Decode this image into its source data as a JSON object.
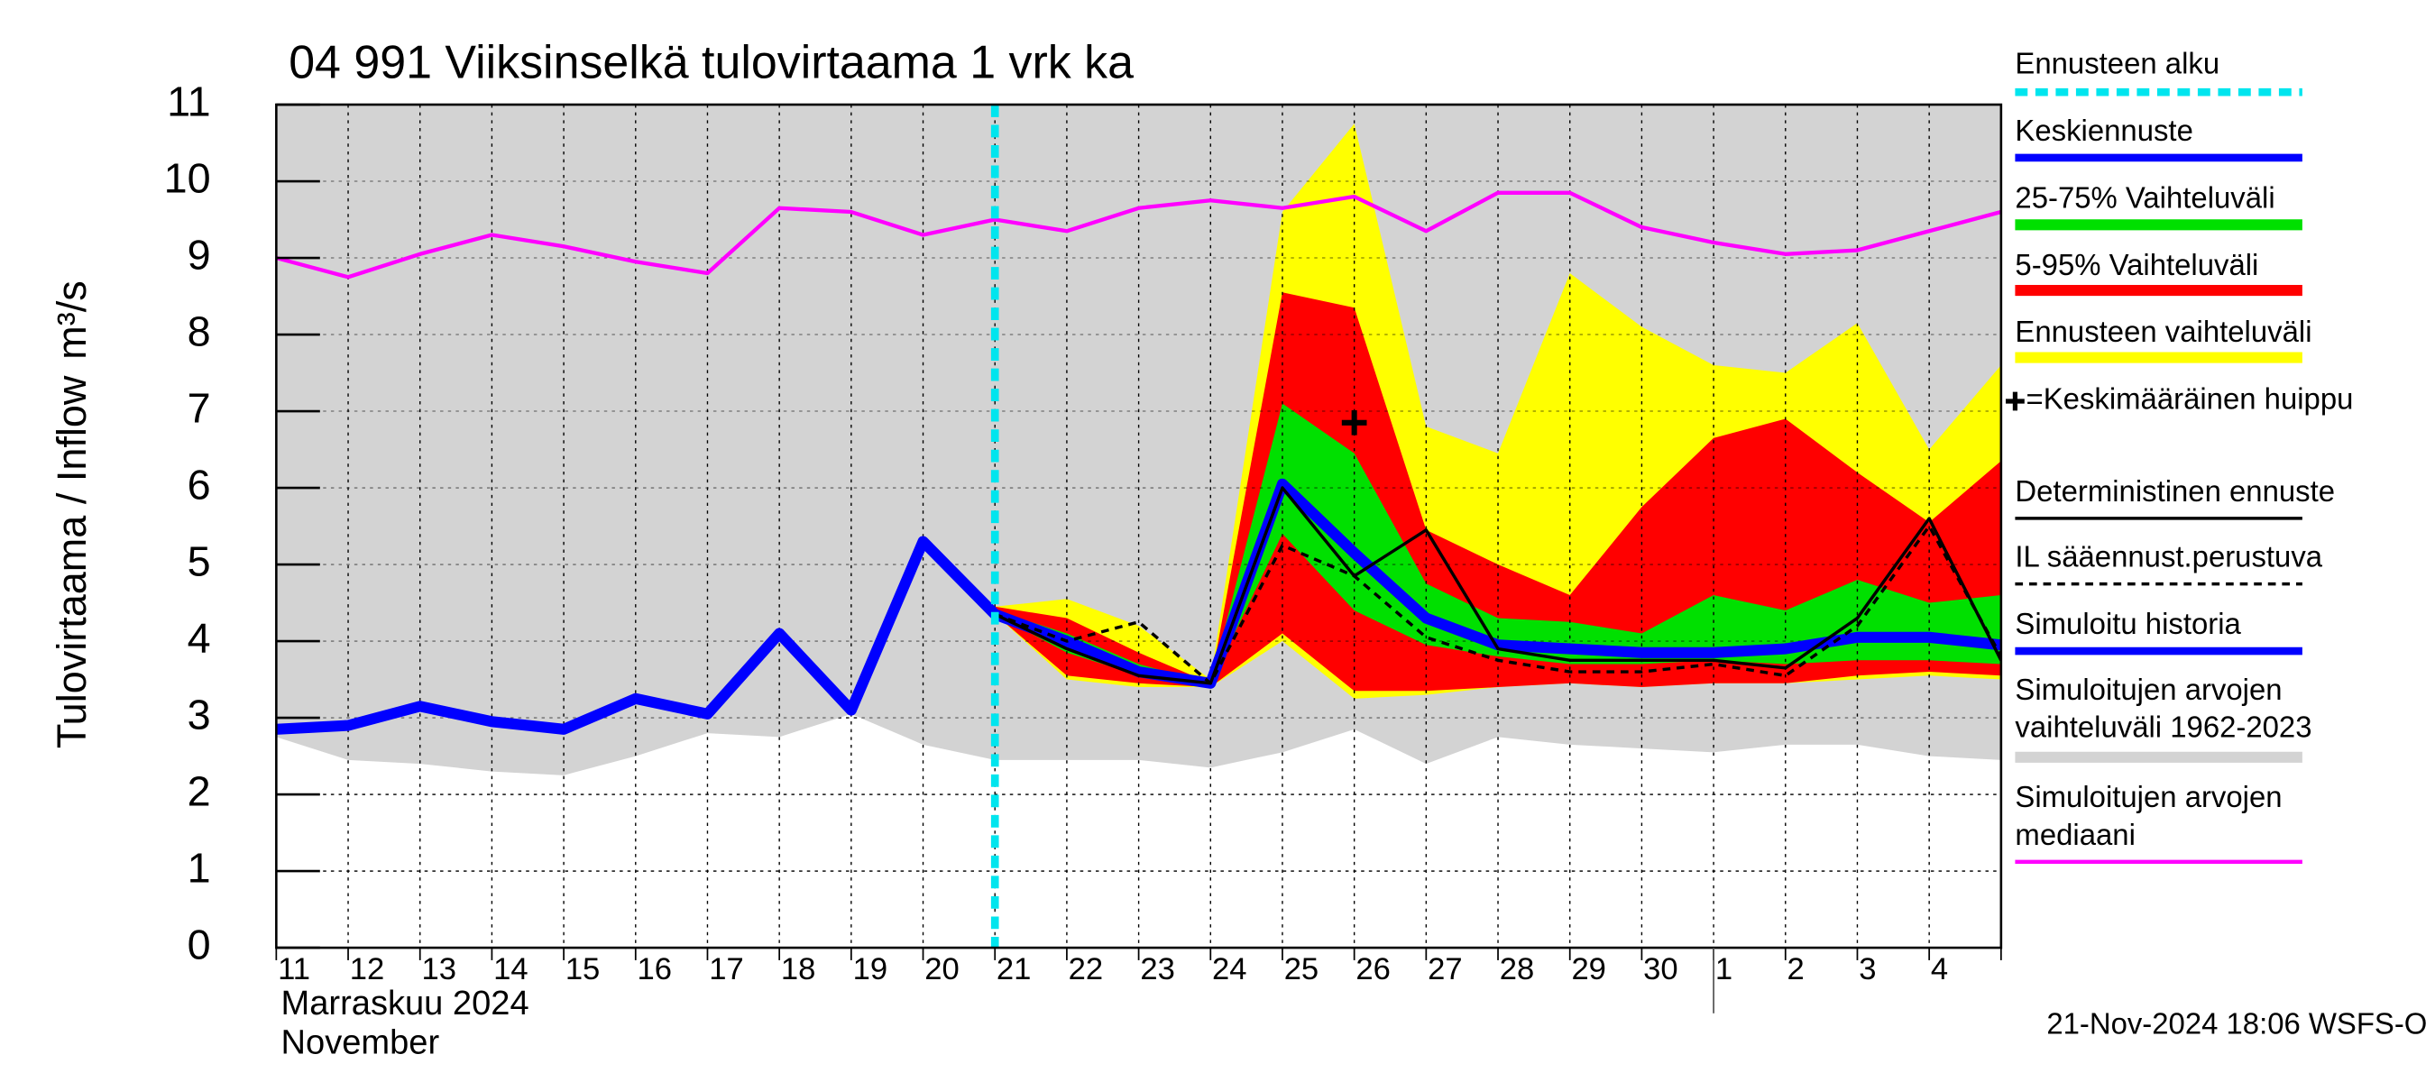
{
  "chart_data": {
    "type": "hydrograph",
    "title": "04 991 Viiksinselkä tulovirtaama 1 vrk ka",
    "ylabel": "Tulovirtaama / Inflow",
    "ylabel_unit": "m³/s",
    "x_label_fi": "Marraskuu 2024",
    "x_label_en": "November",
    "timestamp": "21-Nov-2024 18:06 WSFS-O",
    "categories": [
      "11",
      "12",
      "13",
      "14",
      "15",
      "16",
      "17",
      "18",
      "19",
      "20",
      "21",
      "22",
      "23",
      "24",
      "25",
      "26",
      "27",
      "28",
      "29",
      "30",
      "1",
      "2",
      "3",
      "4",
      null
    ],
    "xlim": [
      0,
      24
    ],
    "ylim": [
      0,
      11
    ],
    "yticks": [
      0,
      1,
      2,
      3,
      4,
      5,
      6,
      7,
      8,
      9,
      10,
      11
    ],
    "grid": true,
    "series": [
      {
        "name": "Ennusteen alku",
        "kind": "vline",
        "color": "#00e5ee",
        "x": 10
      },
      {
        "name": "Keskiennuste",
        "kind": "line",
        "color": "#0000ff",
        "values": [
          null,
          null,
          null,
          null,
          null,
          null,
          null,
          null,
          null,
          null,
          4.35,
          4.0,
          3.6,
          3.45,
          6.05,
          5.15,
          4.3,
          3.95,
          3.9,
          3.85,
          3.85,
          3.9,
          4.05,
          4.05,
          3.95
        ]
      },
      {
        "name": "25-75% Vaihteluväli",
        "kind": "band",
        "color": "#00e000",
        "high": [
          null,
          null,
          null,
          null,
          null,
          null,
          null,
          null,
          null,
          null,
          4.4,
          4.1,
          3.7,
          3.45,
          7.1,
          6.45,
          4.75,
          4.3,
          4.25,
          4.1,
          4.6,
          4.4,
          4.8,
          4.5,
          4.6
        ],
        "low": [
          null,
          null,
          null,
          null,
          null,
          null,
          null,
          null,
          null,
          null,
          4.35,
          3.85,
          3.55,
          3.45,
          5.4,
          4.4,
          3.95,
          3.8,
          3.7,
          3.7,
          3.75,
          3.7,
          3.75,
          3.75,
          3.7
        ]
      },
      {
        "name": "5-95% Vaihteluväli",
        "kind": "band",
        "color": "#ff0000",
        "high": [
          null,
          null,
          null,
          null,
          null,
          null,
          null,
          null,
          null,
          null,
          4.45,
          4.3,
          3.85,
          3.45,
          8.55,
          8.35,
          5.45,
          5.0,
          4.6,
          5.75,
          6.65,
          6.9,
          6.2,
          5.55,
          6.35
        ],
        "low": [
          null,
          null,
          null,
          null,
          null,
          null,
          null,
          null,
          null,
          null,
          4.35,
          3.55,
          3.45,
          3.4,
          4.1,
          3.35,
          3.35,
          3.4,
          3.45,
          3.4,
          3.45,
          3.45,
          3.55,
          3.6,
          3.55
        ]
      },
      {
        "name": "Ennusteen vaihteluväli",
        "kind": "band",
        "color": "#ffff00",
        "high": [
          null,
          null,
          null,
          null,
          null,
          null,
          null,
          null,
          null,
          null,
          4.45,
          4.55,
          4.2,
          3.5,
          9.6,
          10.75,
          6.8,
          6.45,
          8.8,
          8.1,
          7.6,
          7.5,
          8.15,
          6.5,
          7.6
        ],
        "low": [
          null,
          null,
          null,
          null,
          null,
          null,
          null,
          null,
          null,
          null,
          4.35,
          3.5,
          3.4,
          3.4,
          4.0,
          3.25,
          3.3,
          3.4,
          3.45,
          3.4,
          3.45,
          3.45,
          3.5,
          3.55,
          3.5
        ]
      },
      {
        "name": "=Keskimääräinen huippu",
        "kind": "marker",
        "color": "#000000",
        "x": [
          15
        ],
        "values": [
          6.85
        ]
      },
      {
        "name": "Deterministinen ennuste",
        "kind": "line",
        "color": "#000000",
        "values": [
          null,
          null,
          null,
          null,
          null,
          null,
          null,
          null,
          null,
          null,
          4.35,
          3.9,
          3.55,
          3.45,
          6.0,
          4.85,
          5.45,
          3.9,
          3.75,
          3.75,
          3.75,
          3.65,
          4.3,
          5.6,
          3.75
        ]
      },
      {
        "name": "IL sääennust.perustuva",
        "kind": "dashed",
        "color": "#000000",
        "values": [
          null,
          null,
          null,
          null,
          null,
          null,
          null,
          null,
          null,
          null,
          4.35,
          4.0,
          4.25,
          3.45,
          5.25,
          4.85,
          4.05,
          3.75,
          3.6,
          3.6,
          3.7,
          3.55,
          4.2,
          5.5,
          3.8
        ]
      },
      {
        "name": "Simuloitu historia",
        "kind": "line",
        "color": "#0000ff",
        "values": [
          2.85,
          2.9,
          3.15,
          2.95,
          2.85,
          3.25,
          3.05,
          4.1,
          3.1,
          5.3,
          4.35,
          null,
          null,
          null,
          null,
          null,
          null,
          null,
          null,
          null,
          null,
          null,
          null,
          null,
          null
        ]
      },
      {
        "name": "Simuloitujen arvojen vaihteluväli 1962-2023",
        "kind": "band",
        "color": "#d3d3d3",
        "high": [
          11,
          11,
          11,
          11,
          11,
          11,
          11,
          11,
          11,
          11,
          11,
          11,
          11,
          11,
          11,
          11,
          11,
          11,
          11,
          11,
          11,
          11,
          11,
          11,
          11
        ],
        "low": [
          2.75,
          2.45,
          2.4,
          2.3,
          2.25,
          2.5,
          2.8,
          2.75,
          3.05,
          2.65,
          2.45,
          2.45,
          2.45,
          2.35,
          2.55,
          2.85,
          2.4,
          2.75,
          2.65,
          2.6,
          2.55,
          2.65,
          2.65,
          2.5,
          2.45
        ]
      },
      {
        "name": "Simuloitujen arvojen mediaani",
        "kind": "line",
        "color": "#ff00ff",
        "values": [
          9.0,
          8.75,
          9.05,
          9.3,
          9.15,
          8.95,
          8.8,
          9.65,
          9.6,
          9.3,
          9.5,
          9.35,
          9.65,
          9.75,
          9.65,
          9.8,
          9.35,
          9.85,
          9.85,
          9.4,
          9.2,
          9.05,
          9.1,
          9.35,
          9.6
        ]
      }
    ]
  }
}
